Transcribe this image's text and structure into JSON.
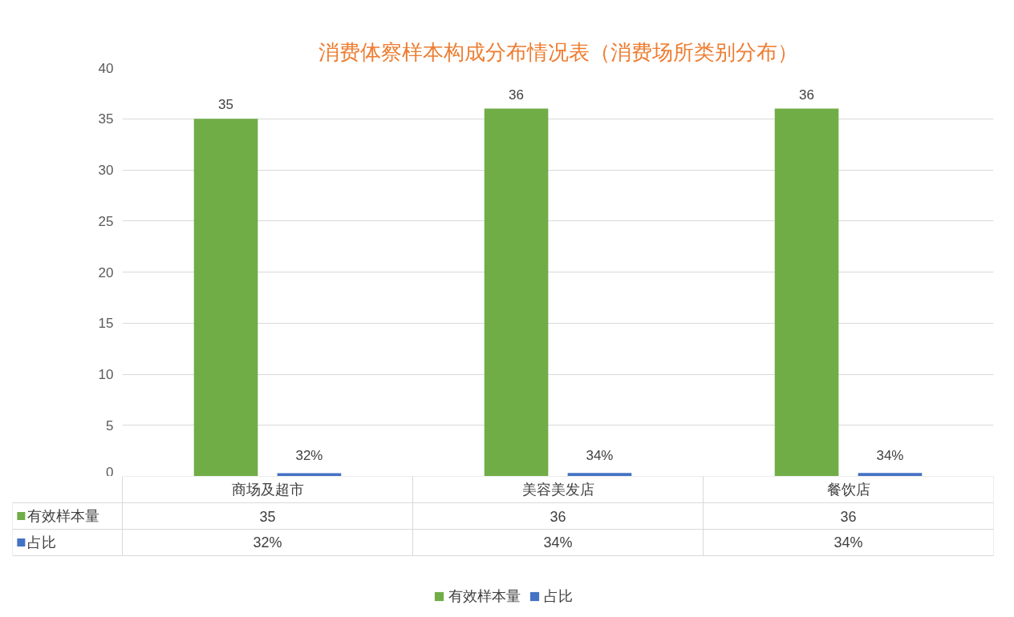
{
  "chart_data": {
    "type": "bar",
    "title": "消费体察样本构成分布情况表（消费场所类别分布）",
    "categories": [
      "商场及超市",
      "美容美发店",
      "餐饮店"
    ],
    "series": [
      {
        "name": "有效样本量",
        "color": "#70ad47",
        "values": [
          35,
          36,
          36
        ],
        "value_labels": [
          "35",
          "36",
          "36"
        ]
      },
      {
        "name": "占比",
        "color": "#4472c4",
        "values": [
          0.32,
          0.34,
          0.34
        ],
        "value_labels": [
          "32%",
          "34%",
          "34%"
        ]
      }
    ],
    "ylim": [
      0,
      40
    ],
    "yticks": [
      0,
      5,
      10,
      15,
      20,
      25,
      30,
      35,
      40
    ],
    "grid": "y",
    "legend": "bottom"
  }
}
